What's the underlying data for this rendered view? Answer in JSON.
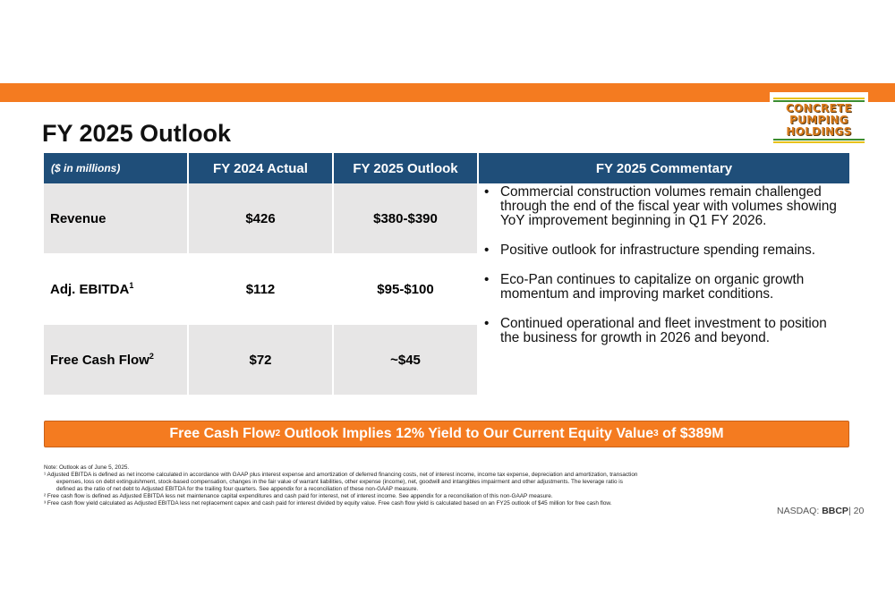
{
  "header": {
    "accent_color": "#F47B20",
    "logo": {
      "lines": [
        "CONCRETE",
        "PUMPING",
        "HOLDINGS"
      ]
    }
  },
  "title": "FY 2025 Outlook",
  "table": {
    "header_color": "#1F4E79",
    "columns": [
      "($ in millions)",
      "FY 2024 Actual",
      "FY 2025 Outlook",
      "FY 2025 Commentary"
    ],
    "rows": [
      {
        "metric": "Revenue",
        "sup": "",
        "actual": "$426",
        "outlook": "$380-$390"
      },
      {
        "metric": "Adj. EBITDA",
        "sup": "1",
        "actual": "$112",
        "outlook": "$95-$100"
      },
      {
        "metric": "Free Cash Flow",
        "sup": "2",
        "actual": "$72",
        "outlook": "~$45"
      }
    ],
    "commentary": [
      "Commercial construction volumes remain challenged through the end of the fiscal year with volumes showing YoY improvement beginning in Q1 FY 2026.",
      "Positive outlook for infrastructure spending remains.",
      "Eco-Pan continues to capitalize on organic growth momentum and improving market conditions.",
      "Continued operational and fleet investment to position the business for growth in 2026 and beyond."
    ]
  },
  "banner": {
    "part1": "Free Cash Flow",
    "sup1": "2",
    "part2": " Outlook Implies 12% Yield to Our Current Equity Value",
    "sup2": "3",
    "part3": " of $389M"
  },
  "notes": {
    "note": "Note: Outlook as of June 5, 2025.",
    "fn1_a": "¹ Adjusted EBITDA is defined as net income calculated in accordance with GAAP plus interest expense and amortization of deferred financing costs, net of interest income, income tax expense, depreciation and amortization, transaction",
    "fn1_b": "expenses, loss on debt extinguishment, stock-based compensation, changes in the fair value of warrant liabilities, other expense (income), net, goodwill and intangibles impairment and other adjustments. The leverage ratio is",
    "fn1_c": "defined as the ratio of net debt to Adjusted EBITDA for the trailing four quarters. See appendix for a reconciliation of these non-GAAP measure.",
    "fn2": "² Free cash flow is defined as Adjusted EBITDA less net maintenance capital expenditures and cash paid for interest, net of interest income. See appendix for a reconciliation of this non-GAAP measure.",
    "fn3": "³ Free cash flow yield calculated as Adjusted EBITDA less net replacement capex and cash paid for interest divided by equity value. Free cash flow yield is calculated based on an FY25 outlook of $45 million for free cash flow."
  },
  "footer": {
    "exchange": "NASDAQ:",
    "ticker": "BBCP",
    "page": "| 20"
  }
}
